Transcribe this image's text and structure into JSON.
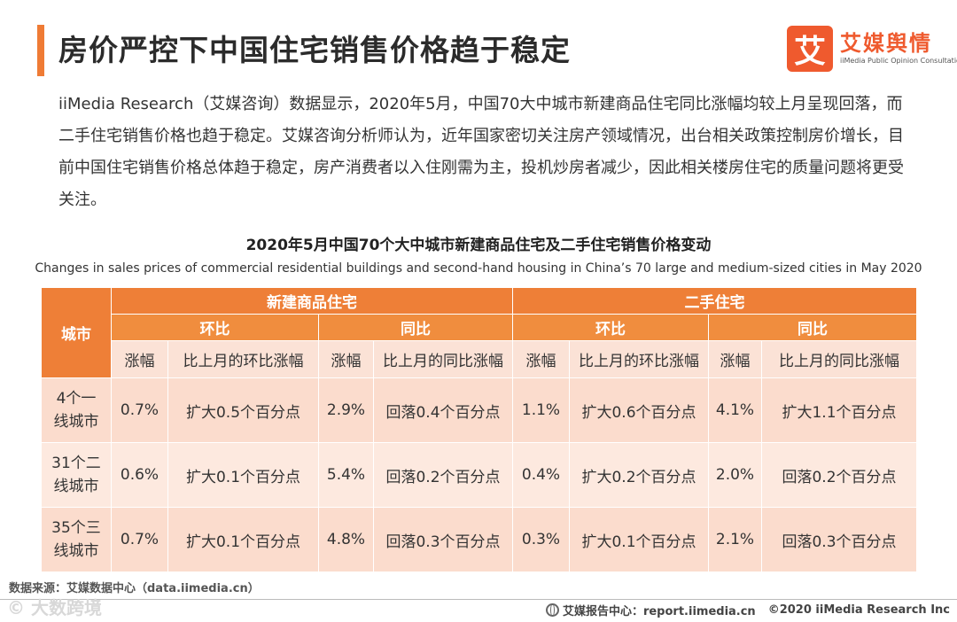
{
  "header": {
    "title": "房价严控下中国住宅销售价格趋于稳定",
    "logo_mark": "艾",
    "logo_name": "艾媒舆情",
    "logo_sub": "iiMedia Public Opinion Consultation"
  },
  "intro": "iiMedia Research（艾媒咨询）数据显示，2020年5月，中国70大中城市新建商品住宅同比涨幅均较上月呈现回落，而二手住宅销售价格也趋于稳定。艾媒咨询分析师认为，近年国家密切关注房产领域情况，出台相关政策控制房价增长，目前中国住宅销售价格总体趋于稳定，房产消费者以入住刚需为主，投机炒房者减少，因此相关楼房住宅的质量问题将更受关注。",
  "table": {
    "title": "2020年5月中国70个大中城市新建商品住宅及二手住宅销售价格变动",
    "subtitle": "Changes in sales prices of commercial residential buildings and second-hand housing in China’s 70 large and medium-sized cities in May 2020",
    "city_header": "城市",
    "groups": [
      "新建商品住宅",
      "二手住宅"
    ],
    "subgroups": [
      "环比",
      "同比",
      "环比",
      "同比"
    ],
    "columns": [
      "涨幅",
      "比上月的环比涨幅",
      "涨幅",
      "比上月的同比涨幅",
      "涨幅",
      "比上月的环比涨幅",
      "涨幅",
      "比上月的同比涨幅"
    ],
    "rows": [
      {
        "city": [
          "4个一",
          "线城市"
        ],
        "cells": [
          "0.7%",
          "扩大0.5个百分点",
          "2.9%",
          "回落0.4个百分点",
          "1.1%",
          "扩大0.6个百分点",
          "4.1%",
          "扩大1.1个百分点"
        ]
      },
      {
        "city": [
          "31个二",
          "线城市"
        ],
        "cells": [
          "0.6%",
          "扩大0.1个百分点",
          "5.4%",
          "回落0.2个百分点",
          "0.4%",
          "扩大0.2个百分点",
          "2.0%",
          "回落0.2个百分点"
        ]
      },
      {
        "city": [
          "35个三",
          "线城市"
        ],
        "cells": [
          "0.7%",
          "扩大0.1个百分点",
          "4.8%",
          "回落0.3个百分点",
          "0.3%",
          "扩大0.1个百分点",
          "2.1%",
          "回落0.3个百分点"
        ]
      }
    ]
  },
  "footer": {
    "source": "数据来源：艾媒数据中心（data.iimedia.cn）",
    "watermark": "©  大数跨境",
    "report_center": "艾媒报告中心：report.iimedia.cn",
    "copyright": "©2020  iiMedia Research  Inc",
    "globe_icon": "globe-icon"
  }
}
